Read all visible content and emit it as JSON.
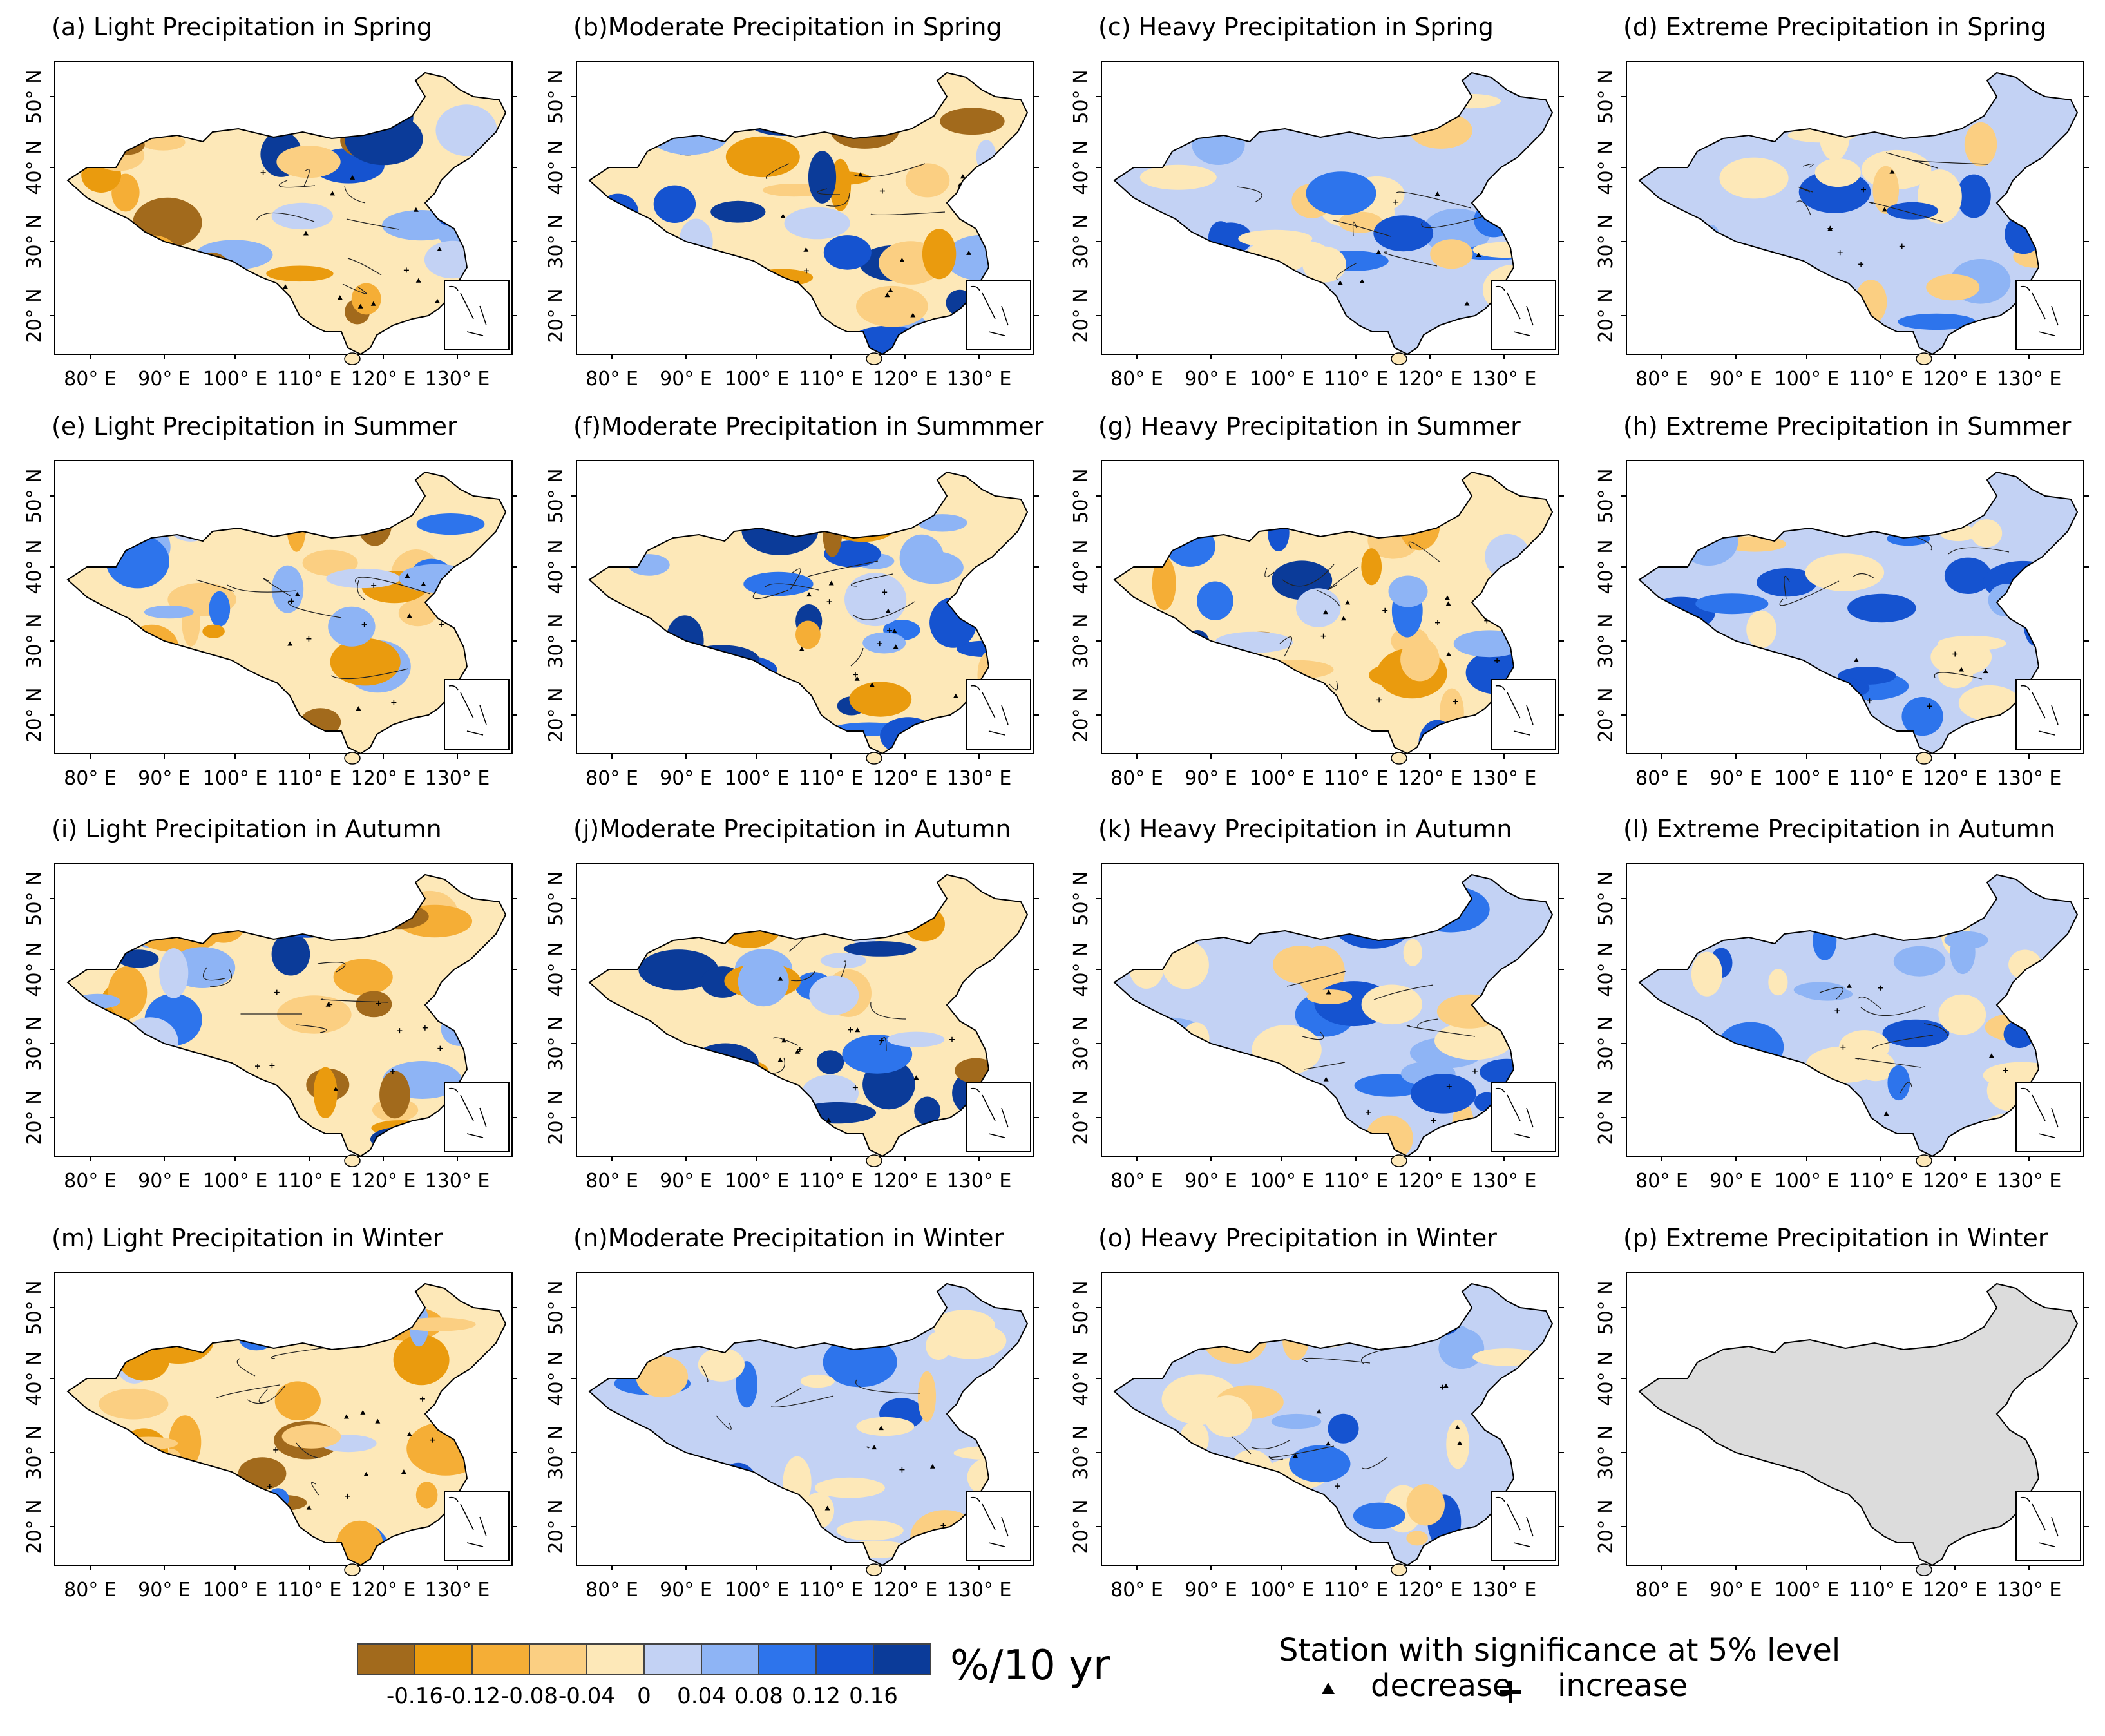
{
  "figure": {
    "panels": [
      {
        "id": "a",
        "title": "(a) Light Precipitation in Spring",
        "pattern": "mixed"
      },
      {
        "id": "b",
        "title": "(b)Moderate Precipitation in Spring",
        "pattern": "mixed"
      },
      {
        "id": "c",
        "title": "(c) Heavy Precipitation in Spring",
        "pattern": "mostly-increase"
      },
      {
        "id": "d",
        "title": "(d) Extreme Precipitation in Spring",
        "pattern": "mostly-increase"
      },
      {
        "id": "e",
        "title": "(e) Light Precipitation in Summer",
        "pattern": "mostly-decrease"
      },
      {
        "id": "f",
        "title": "(f)Moderate Precipitation in Summmer",
        "pattern": "mixed"
      },
      {
        "id": "g",
        "title": "(g) Heavy Precipitation in Summer",
        "pattern": "mixed"
      },
      {
        "id": "h",
        "title": "(h) Extreme Precipitation in Summer",
        "pattern": "mostly-increase"
      },
      {
        "id": "i",
        "title": "(i) Light Precipitation in Autumn",
        "pattern": "mixed"
      },
      {
        "id": "j",
        "title": "(j)Moderate Precipitation in Autumn",
        "pattern": "mixed"
      },
      {
        "id": "k",
        "title": "(k) Heavy Precipitation in Autumn",
        "pattern": "mostly-increase"
      },
      {
        "id": "l",
        "title": "(l) Extreme Precipitation in Autumn",
        "pattern": "mostly-increase"
      },
      {
        "id": "m",
        "title": "(m) Light Precipitation in Winter",
        "pattern": "mostly-decrease"
      },
      {
        "id": "n",
        "title": "(n)Moderate Precipitation in Winter",
        "pattern": "mostly-increase"
      },
      {
        "id": "o",
        "title": "(o) Heavy Precipitation in Winter",
        "pattern": "mostly-increase"
      },
      {
        "id": "p",
        "title": "(p) Extreme Precipitation in Winter",
        "pattern": "no-data"
      }
    ],
    "lon_labels": [
      "80° E",
      "90° E",
      "100° E",
      "110° E",
      "120° E",
      "130° E"
    ],
    "lat_labels": [
      "20° N",
      "30° N",
      "40° N",
      "50° N"
    ],
    "colorbar": {
      "colors": [
        "#a26a1c",
        "#ea9b0e",
        "#f5ae36",
        "#fbcf82",
        "#fde8b8",
        "#c3d2f4",
        "#8eb4f5",
        "#2d74ec",
        "#1553d0",
        "#0b3b99"
      ],
      "tick_labels": [
        "-0.16",
        "-0.12",
        "-0.08",
        "-0.04",
        "0",
        "0.04",
        "0.08",
        "0.12",
        "0.16"
      ],
      "unit": "%/10 yr"
    },
    "station_legend": {
      "title": "Station with significance at 5% level",
      "decrease_label": "decrease",
      "increase_label": "increase"
    },
    "no_data_color": "#dcdcdc"
  }
}
